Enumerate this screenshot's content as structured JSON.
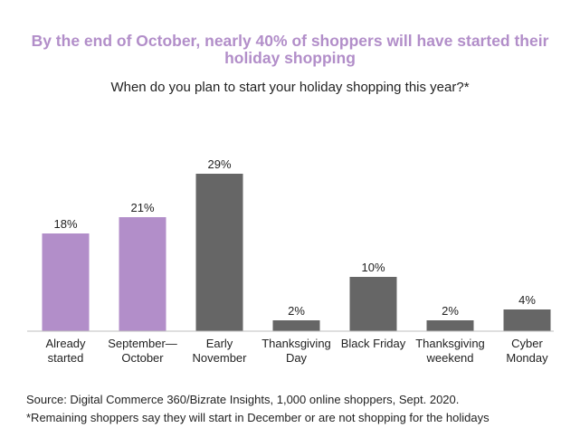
{
  "title": "By the end of October, nearly 40% of shoppers will have started their holiday shopping",
  "subtitle": "When do you plan to start your holiday shopping this year?*",
  "colors": {
    "highlight": "#b28ec9",
    "default": "#666666",
    "title": "#b28ec9"
  },
  "chart_data": {
    "type": "bar",
    "categories": [
      [
        "Already",
        "started"
      ],
      [
        "September—",
        "October"
      ],
      [
        "Early",
        "November"
      ],
      [
        "Thanksgiving",
        "Day"
      ],
      [
        "Black Friday"
      ],
      [
        "Thanksgiving",
        "weekend"
      ],
      [
        "Cyber",
        "Monday"
      ]
    ],
    "values": [
      18,
      21,
      29,
      2,
      10,
      2,
      4
    ],
    "value_labels": [
      "18%",
      "21%",
      "29%",
      "2%",
      "10%",
      "2%",
      "4%"
    ],
    "highlighted": [
      true,
      true,
      false,
      false,
      false,
      false,
      false
    ],
    "ylim": [
      0,
      30
    ],
    "grid": false
  },
  "source": "Source: Digital Commerce 360/Bizrate Insights, 1,000 online shoppers, Sept. 2020.",
  "note": "*Remaining shoppers say they will start in December or are not shopping for the holidays"
}
